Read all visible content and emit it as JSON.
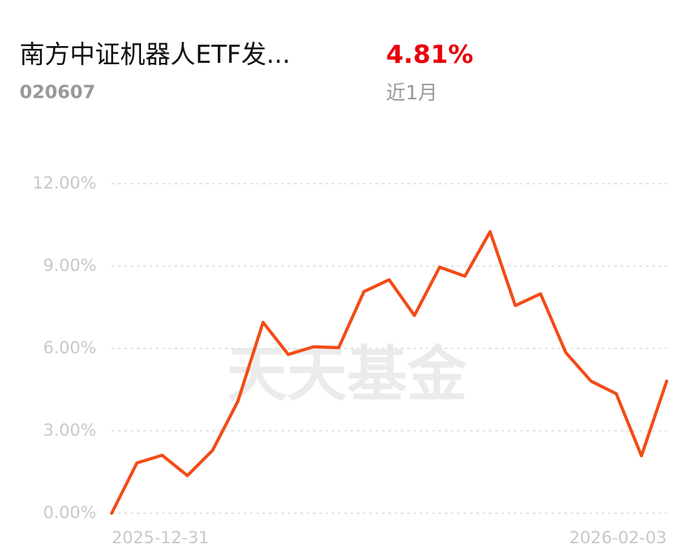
{
  "header": {
    "title": "南方中证机器人ETF发...",
    "code": "020607",
    "return": "4.81%",
    "period": "近1月"
  },
  "chart_data": {
    "type": "line",
    "watermark": "天天基金",
    "categories": [
      "2025-12-31",
      null,
      null,
      null,
      null,
      null,
      null,
      null,
      null,
      null,
      null,
      null,
      null,
      null,
      null,
      null,
      null,
      null,
      null,
      null,
      null,
      null,
      "2026-02-03"
    ],
    "series": [
      {
        "color": "#f24c16",
        "values": [
          0,
          1.83,
          2.11,
          1.37,
          2.29,
          4.07,
          6.95,
          5.78,
          6.06,
          6.03,
          8.07,
          8.5,
          7.2,
          8.96,
          8.63,
          10.25,
          7.56,
          7.99,
          5.85,
          4.81,
          4.35,
          2.09,
          4.81
        ]
      }
    ],
    "ylim": [
      0,
      12
    ],
    "yticks": [
      {
        "value": 0,
        "label": "0.00%"
      },
      {
        "value": 3,
        "label": "3.00%"
      },
      {
        "value": 6,
        "label": "6.00%"
      },
      {
        "value": 9,
        "label": "9.00%"
      },
      {
        "value": 12,
        "label": "12.00%"
      }
    ],
    "grid": true
  }
}
